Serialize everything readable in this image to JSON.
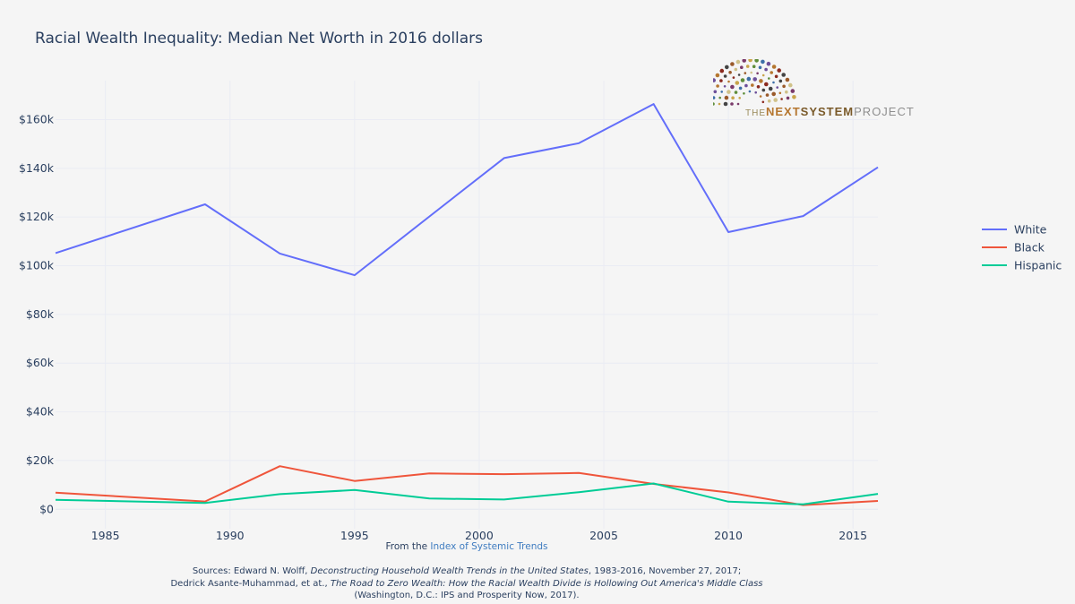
{
  "chart_data": {
    "type": "line",
    "title": "Racial Wealth Inequality: Median Net Worth in 2016 dollars",
    "xlim": [
      1983,
      2016
    ],
    "ylim": [
      -8000,
      176000
    ],
    "x_ticks": [
      1985,
      1990,
      1995,
      2000,
      2005,
      2010,
      2015
    ],
    "y_ticks": [
      {
        "value": 0,
        "label": "$0"
      },
      {
        "value": 20000,
        "label": "$20k"
      },
      {
        "value": 40000,
        "label": "$40k"
      },
      {
        "value": 60000,
        "label": "$60k"
      },
      {
        "value": 80000,
        "label": "$80k"
      },
      {
        "value": 100000,
        "label": "$100k"
      },
      {
        "value": 120000,
        "label": "$120k"
      },
      {
        "value": 140000,
        "label": "$140k"
      },
      {
        "value": 160000,
        "label": "$160k"
      }
    ],
    "x": [
      1983,
      1989,
      1992,
      1995,
      1998,
      2001,
      2004,
      2007,
      2010,
      2013,
      2016
    ],
    "series": [
      {
        "name": "White",
        "color": "#636efa",
        "values": [
          105200,
          125200,
          105000,
          96100,
          120200,
          144200,
          150300,
          166400,
          113800,
          120400,
          140400
        ]
      },
      {
        "name": "Black",
        "color": "#ef553b",
        "values": [
          6800,
          3200,
          17700,
          11600,
          14700,
          14400,
          14900,
          10400,
          6900,
          1700,
          3400
        ]
      },
      {
        "name": "Hispanic",
        "color": "#00cc96",
        "values": [
          3900,
          2600,
          6200,
          7900,
          4400,
          4000,
          7000,
          10600,
          3100,
          2000,
          6300
        ]
      }
    ],
    "grid": true,
    "legend_position": "right"
  },
  "logo": {
    "words": [
      "THE",
      "NEXT",
      "SYSTEM",
      "PROJECT"
    ]
  },
  "footer": {
    "from_prefix": "From the",
    "from_link": "Index of Systemic Trends",
    "src_line1_a": "Sources: Edward N. Wolff,",
    "src_line1_b": "Deconstructing Household Wealth Trends in the United States",
    "src_line1_c": ", 1983-2016, November 27, 2017;",
    "src_line2_a": "Dedrick Asante-Muhammad, et at.,",
    "src_line2_b": "The Road to Zero Wealth: How the Racial Wealth Divide is Hollowing Out America's Middle Class",
    "src_line3": "(Washington, D.C.: IPS and Prosperity Now, 2017)."
  }
}
